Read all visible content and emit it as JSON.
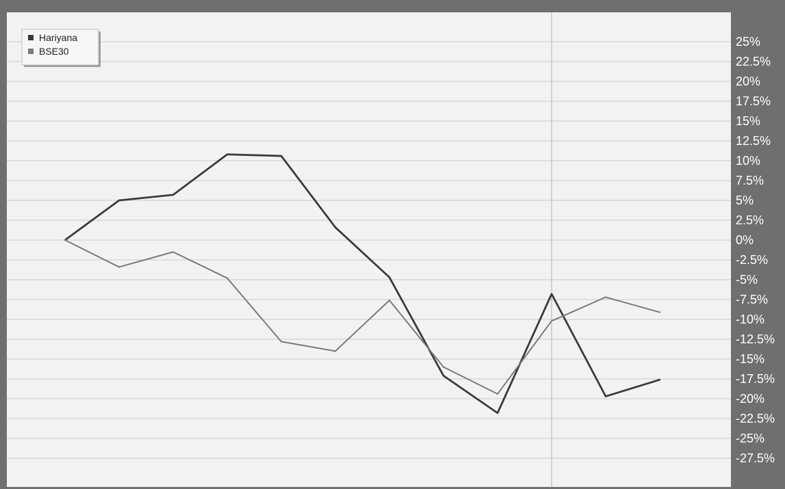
{
  "chart_data": {
    "type": "line",
    "title": "",
    "xlabel": "",
    "ylabel": "",
    "x": [
      1,
      2,
      3,
      4,
      5,
      6,
      7,
      8,
      9,
      10,
      11,
      12
    ],
    "series": [
      {
        "name": "Hariyana",
        "color": "#3a3a3a",
        "values": [
          0,
          5,
          5.7,
          10.8,
          10.6,
          1.6,
          -4.7,
          -17.1,
          -21.8,
          -6.8,
          -19.7,
          -17.6
        ]
      },
      {
        "name": "BSE30",
        "color": "#7a7a7a",
        "values": [
          0,
          -3.4,
          -1.5,
          -4.8,
          -12.8,
          -14,
          -7.6,
          -16,
          -19.4,
          -10.2,
          -7.2,
          -9.1
        ]
      }
    ],
    "ylim": [
      -30,
      27.5
    ],
    "y_ticks": [
      25,
      22.5,
      20,
      17.5,
      15,
      12.5,
      10,
      7.5,
      5,
      2.5,
      0,
      -2.5,
      -5,
      -7.5,
      -10,
      -12.5,
      -15,
      -17.5,
      -20,
      -22.5,
      -25,
      -27.5
    ],
    "y_tick_labels": [
      "25%",
      "22.5%",
      "20%",
      "17.5%",
      "15%",
      "12.5%",
      "10%",
      "7.5%",
      "5%",
      "2.5%",
      "0%",
      "-2.5%",
      "-5%",
      "-7.5%",
      "-10%",
      "-12.5%",
      "-15%",
      "-17.5%",
      "-20%",
      "-22.5%",
      "-25%",
      "-27.5%"
    ],
    "y_axis_position": "right",
    "grid": true,
    "vertical_marker_x": 10,
    "legend": {
      "placement": "top-left",
      "entries": [
        "Hariyana",
        "BSE30"
      ]
    }
  }
}
